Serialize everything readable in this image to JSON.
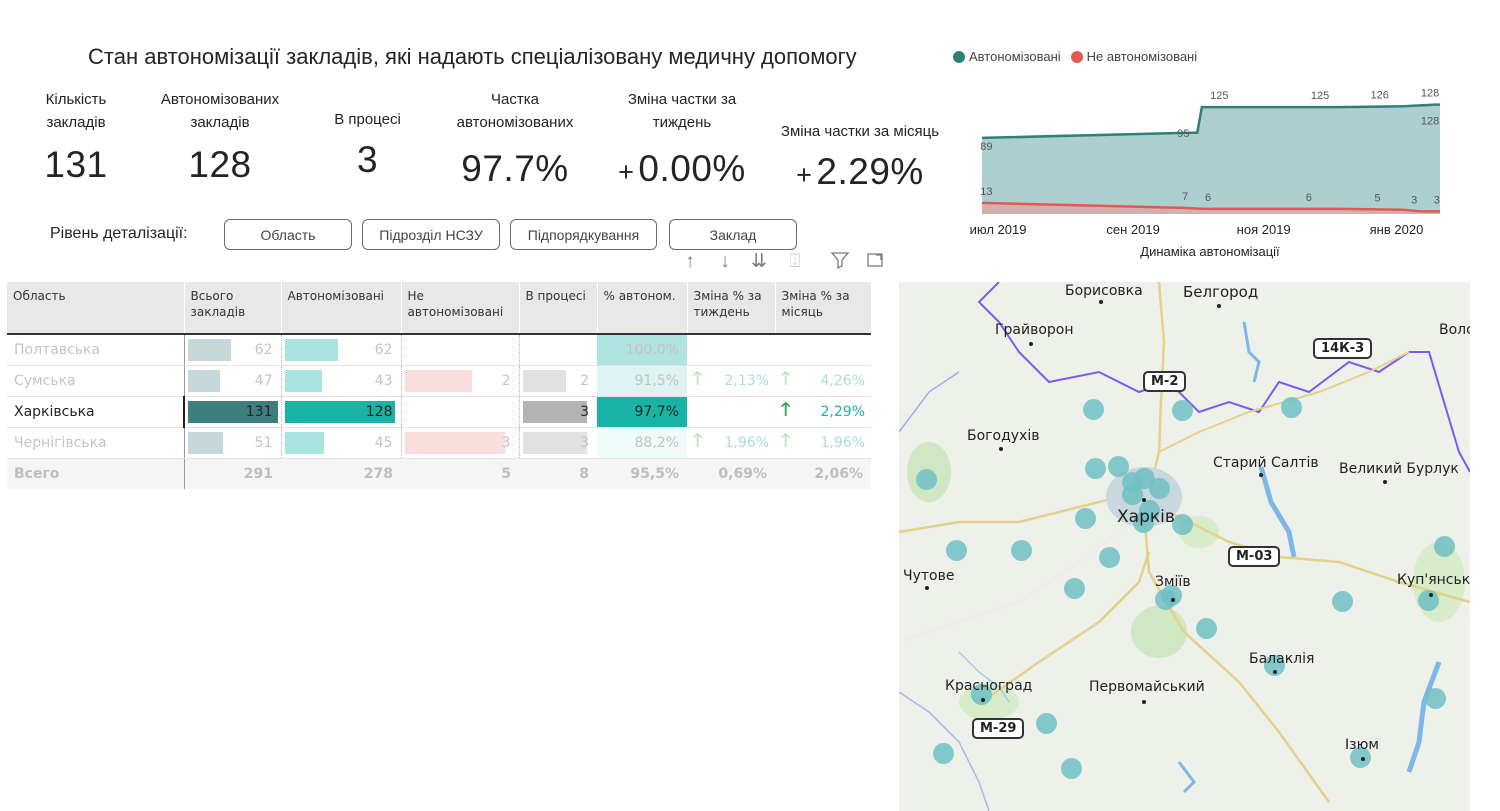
{
  "title": "Стан автономізації закладів, які надають спеціалізовану медичну допомогу",
  "kpis": {
    "total_label_1": "Кількість",
    "total_label_2": "закладів",
    "total_value": "131",
    "auto_label_1": "Автономізованих",
    "auto_label_2": "закладів",
    "auto_value": "128",
    "process_label": "В процесі",
    "process_value": "3",
    "share_label_1": "Частка",
    "share_label_2": "автономізованих",
    "share_value": "97.7%",
    "week_label_1": "Зміна частки за",
    "week_label_2": "тиждень",
    "week_sign": "+",
    "week_value": "0.00%",
    "month_label": "Зміна частки за місяць",
    "month_sign": "+",
    "month_value": "2.29%"
  },
  "drill": {
    "label": "Рівень деталізації:",
    "buttons": [
      "Область",
      "Підрозділ НСЗУ",
      "Підпорядкування",
      "Заклад"
    ]
  },
  "toolbar_icons": [
    "arrow-up-icon",
    "arrow-down-icon",
    "double-arrow-down-icon",
    "expand-hierarchy-icon",
    "filter-icon",
    "focus-mode-icon"
  ],
  "colors": {
    "autonomized": "#2f7f7b",
    "not_autonomized": "#e05a55",
    "total_bar": "#c5d8da",
    "auto_bar": "#a9e4de",
    "auto_bar_hl": "#19b3a6",
    "not_auto_bar": "#f9dedd",
    "process_bar": "#e2e2e2",
    "process_bar_hl": "#b3b3b3",
    "total_bar_hl": "#3c7f7d",
    "share_bg_hl": "#19b3a6",
    "arrow_green": "#2e9e4f",
    "arrow_light": "#b8e5c3",
    "trend_text": "#19b3a6"
  },
  "table": {
    "headers": [
      "Область",
      "Всього закладів",
      "Автономізовані",
      "Не автономізовані",
      "В процесі",
      "% автоном.",
      "Зміна % за тиждень",
      "Зміна % за місяць"
    ],
    "rows": [
      {
        "name": "Полтавська",
        "total": "62",
        "auto": "62",
        "not_auto": "",
        "process": "",
        "share": "100,0%",
        "week": "",
        "month": "",
        "week_arrow": false,
        "month_arrow": false,
        "total_n": 62,
        "auto_n": 62,
        "not_auto_n": 0,
        "process_n": 0,
        "share_n": 100,
        "style": "dim"
      },
      {
        "name": "Сумська",
        "total": "47",
        "auto": "43",
        "not_auto": "2",
        "process": "2",
        "share": "91,5%",
        "week": "2,13%",
        "month": "4,26%",
        "week_arrow": true,
        "month_arrow": true,
        "total_n": 47,
        "auto_n": 43,
        "not_auto_n": 2,
        "process_n": 2,
        "share_n": 91.5,
        "style": "dim"
      },
      {
        "name": "Харківська",
        "total": "131",
        "auto": "128",
        "not_auto": "",
        "process": "3",
        "share": "97,7%",
        "week": "",
        "month": "2,29%",
        "week_arrow": false,
        "month_arrow": true,
        "total_n": 131,
        "auto_n": 128,
        "not_auto_n": 0,
        "process_n": 3,
        "share_n": 97.7,
        "style": "hl"
      },
      {
        "name": "Чернігівська",
        "total": "51",
        "auto": "45",
        "not_auto": "3",
        "process": "3",
        "share": "88,2%",
        "week": "1,96%",
        "month": "1,96%",
        "week_arrow": true,
        "month_arrow": true,
        "total_n": 51,
        "auto_n": 45,
        "not_auto_n": 3,
        "process_n": 3,
        "share_n": 88.2,
        "style": "dim"
      }
    ],
    "total_row": {
      "name": "Всего",
      "total": "291",
      "auto": "278",
      "not_auto": "5",
      "process": "8",
      "share": "95,5%",
      "week": "0,69%",
      "month": "2,06%"
    }
  },
  "chart_data": {
    "type": "area",
    "legend": [
      "Автономізовані",
      "Не автономізовані"
    ],
    "legend_position": "top",
    "xlabel": "Динаміка автономізації",
    "x_ticks": [
      "июл 2019",
      "сен 2019",
      "ноя 2019",
      "янв 2020"
    ],
    "series": [
      {
        "name": "Автономізовані",
        "points": [
          [
            0,
            89
          ],
          [
            0.45,
            95
          ],
          [
            0.47,
            95
          ],
          [
            0.48,
            125
          ],
          [
            0.62,
            125
          ],
          [
            0.78,
            125
          ],
          [
            0.92,
            126
          ],
          [
            0.99,
            128
          ],
          [
            1,
            128
          ]
        ]
      },
      {
        "name": "Не автономізовані",
        "points": [
          [
            0,
            13
          ],
          [
            0.45,
            7
          ],
          [
            0.48,
            6
          ],
          [
            0.62,
            6
          ],
          [
            0.78,
            6
          ],
          [
            0.92,
            5
          ],
          [
            0.96,
            3
          ],
          [
            1,
            3
          ]
        ]
      }
    ],
    "data_labels": {
      "autonomized": [
        "89",
        "95",
        "125",
        "125",
        "126",
        "128",
        "128"
      ],
      "not_autonomized": [
        "13",
        "7",
        "6",
        "6",
        "5",
        "3",
        "3"
      ]
    },
    "ylim": [
      0,
      131
    ]
  },
  "map": {
    "towns": [
      "Борисовка",
      "Белгород",
      "Грайворон",
      "Волс",
      "Богодухів",
      "Старий Салтів",
      "Великий Бурлук",
      "Харків",
      "Чутове",
      "Зміїв",
      "Куп'янськ",
      "Балаклія",
      "Красноград",
      "Первомайський",
      "Ізюм"
    ],
    "roads": [
      "14К-3",
      "М-2",
      "М-03",
      "М-29"
    ]
  }
}
